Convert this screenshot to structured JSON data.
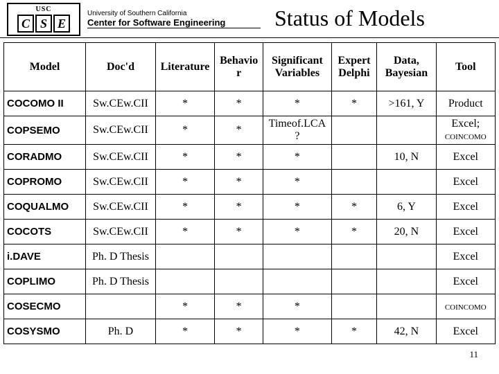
{
  "header": {
    "usc": "USC",
    "c": "C",
    "s": "S",
    "e": "E",
    "university": "University of Southern California",
    "center": "Center for Software Engineering",
    "title": "Status of Models"
  },
  "columns": [
    "Model",
    "Doc'd",
    "Literature",
    "Behavior",
    "Significant Variables",
    "Expert Delphi",
    "Data, Bayesian",
    "Tool"
  ],
  "rows": [
    {
      "name": "COCOMO II",
      "doc": "Sw.CEw.CII",
      "lit": "*",
      "beh": "*",
      "sig": "*",
      "exp": "*",
      "data": ">161, Y",
      "tool": "Product"
    },
    {
      "name": "COPSEMO",
      "doc": "Sw.CEw.CII",
      "lit": "*",
      "beh": "*",
      "sig": "Timeof.LCA?",
      "exp": "",
      "data": "",
      "tool": "Excel; COINCOMO"
    },
    {
      "name": "CORADMO",
      "doc": "Sw.CEw.CII",
      "lit": "*",
      "beh": "*",
      "sig": "*",
      "exp": "",
      "data": "10, N",
      "tool": "Excel"
    },
    {
      "name": "COPROMO",
      "doc": "Sw.CEw.CII",
      "lit": "*",
      "beh": "*",
      "sig": "*",
      "exp": "",
      "data": "",
      "tool": "Excel"
    },
    {
      "name": "COQUALMO",
      "doc": "Sw.CEw.CII",
      "lit": "*",
      "beh": "*",
      "sig": "*",
      "exp": "*",
      "data": "6, Y",
      "tool": "Excel"
    },
    {
      "name": "COCOTS",
      "doc": "Sw.CEw.CII",
      "lit": "*",
      "beh": "*",
      "sig": "*",
      "exp": "*",
      "data": "20, N",
      "tool": "Excel"
    },
    {
      "name": "i.DAVE",
      "doc": "Ph. D Thesis",
      "lit": "",
      "beh": "",
      "sig": "",
      "exp": "",
      "data": "",
      "tool": "Excel"
    },
    {
      "name": "COPLIMO",
      "doc": "Ph. D Thesis",
      "lit": "",
      "beh": "",
      "sig": "",
      "exp": "",
      "data": "",
      "tool": "Excel"
    },
    {
      "name": "COSECMO",
      "doc": "",
      "lit": "*",
      "beh": "*",
      "sig": "*",
      "exp": "",
      "data": "",
      "tool": "COINCOMO"
    },
    {
      "name": "COSYSMO",
      "doc": "Ph. D",
      "lit": "*",
      "beh": "*",
      "sig": "*",
      "exp": "*",
      "data": "42, N",
      "tool": "Excel"
    }
  ],
  "pagenum": "11"
}
